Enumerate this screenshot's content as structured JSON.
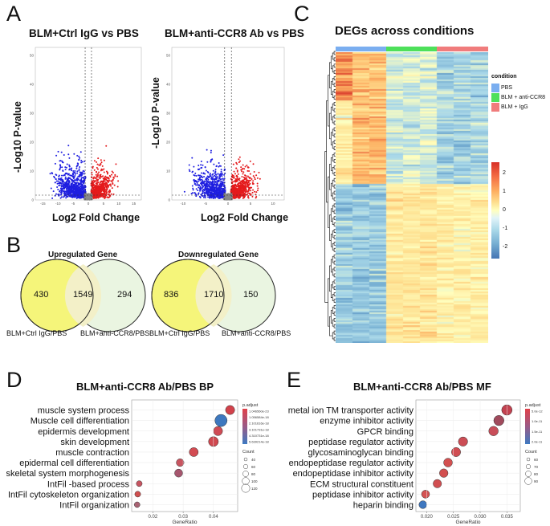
{
  "panels": {
    "A": {
      "letter": "A"
    },
    "B": {
      "letter": "B"
    },
    "C": {
      "letter": "C"
    },
    "D": {
      "letter": "D"
    },
    "E": {
      "letter": "E"
    }
  },
  "volcano": [
    {
      "title": "BLM+Ctrl IgG vs PBS",
      "ylabel": "-Log10 P-value",
      "xlabel": "Log2 Fold Change",
      "xticks": [
        "-15",
        "-10",
        "-5",
        "0",
        "5",
        "10",
        "15"
      ],
      "yticks": [
        "0",
        "10",
        "20",
        "30",
        "40",
        "50"
      ]
    },
    {
      "title": "BLM+anti-CCR8 Ab vs PBS",
      "ylabel": "-Log10 P-value",
      "xlabel": "Log2 Fold Change",
      "xticks": [
        "-10",
        "-5",
        "0",
        "5",
        "10"
      ],
      "yticks": [
        "0",
        "10",
        "20",
        "30",
        "40",
        "50"
      ]
    }
  ],
  "venn": [
    {
      "title": "Upregulated Gene",
      "left_only": "430",
      "overlap": "1549",
      "right_only": "294",
      "left_label": "BLM+Ctrl IgG/PBS",
      "right_label": "BLM+anti-CCR8/PBS"
    },
    {
      "title": "Downregulated Gene",
      "left_only": "836",
      "overlap": "1710",
      "right_only": "150",
      "left_label": "BLM+Ctrl IgG/PBS",
      "right_label": "BLM+anti-CCR8/PBS"
    }
  ],
  "heatmap": {
    "title": "DEGs across conditions",
    "legend_title": "condition",
    "conditions": [
      {
        "name": "PBS",
        "color": "#7aaef0"
      },
      {
        "name": "BLM + anti-CCR8",
        "color": "#4ee05a"
      },
      {
        "name": "BLM + IgG",
        "color": "#f07c7c"
      }
    ],
    "scale_ticks": [
      "2",
      "1",
      "0",
      "-1",
      "-2"
    ]
  },
  "chart_data": [
    {
      "type": "scatter",
      "title": "BLM+anti-CCR8 Ab/PBS BP",
      "xlabel": "GeneRatio",
      "xticks": [
        "0.02",
        "0.03",
        "0.04"
      ],
      "xlim": [
        0.013,
        0.048
      ],
      "legend_title_color": "p.adjust",
      "legend_color_ticks": [
        "1.046560e-23",
        "1.056584e-18",
        "2.101616e-18",
        "3.101731e-18",
        "4.310731e-18",
        "5.639214e-18"
      ],
      "legend_title_size": "Count",
      "legend_size_ticks": [
        "40",
        "60",
        "80",
        "100",
        "120"
      ],
      "terms": [
        "muscle system process",
        "Muscle cell differentiation",
        "epidermis development",
        "skin development",
        "muscle contraction",
        "epidermal cell differentiation",
        "skeletal system morphogenesis",
        "IntFil -based process",
        "IntFil cytoskeleton organization",
        "IntFil organization"
      ],
      "x": [
        0.0455,
        0.0425,
        0.0415,
        0.04,
        0.0335,
        0.029,
        0.0285,
        0.0155,
        0.015,
        0.0148
      ],
      "count": [
        70,
        112,
        70,
        80,
        68,
        50,
        55,
        25,
        25,
        22
      ],
      "color": [
        "#d2424b",
        "#3d78bf",
        "#cf4b55",
        "#d0484f",
        "#d24b52",
        "#c85560",
        "#a6566e",
        "#c65561",
        "#d05050",
        "#a96373"
      ]
    },
    {
      "type": "scatter",
      "title": "BLM+anti-CCR8 Ab/PBS MF",
      "xlabel": "GeneRatio",
      "xticks": [
        "0.020",
        "0.025",
        "0.030",
        "0.035"
      ],
      "xlim": [
        0.018,
        0.0375
      ],
      "legend_title_color": "p.adjust",
      "legend_color_ticks": [
        "5.0e-12",
        "1.0e-11",
        "1.5e-11",
        "2.0e-11"
      ],
      "legend_title_size": "Count",
      "legend_size_ticks": [
        "60",
        "70",
        "80",
        "90"
      ],
      "terms": [
        "metal ion TM transporter activity",
        "enzyme inhibitor activity",
        "GPCR binding",
        "peptidase regulator activity",
        "glycosaminoglycan binding",
        "endopeptidase regulator activity",
        "endopeptidase inhibitor activity",
        "ECM structural constituent",
        "peptidase inhibitor activity",
        "heparin binding"
      ],
      "x": [
        0.035,
        0.0335,
        0.0325,
        0.0268,
        0.0255,
        0.024,
        0.0232,
        0.022,
        0.0198,
        0.0193
      ],
      "count": [
        88,
        85,
        75,
        72,
        70,
        65,
        62,
        60,
        55,
        52
      ],
      "color": [
        "#c34250",
        "#a04a5c",
        "#c84d59",
        "#cc4d55",
        "#d04e53",
        "#d35050",
        "#d35050",
        "#d14e51",
        "#d45353",
        "#3e77bf"
      ]
    }
  ]
}
